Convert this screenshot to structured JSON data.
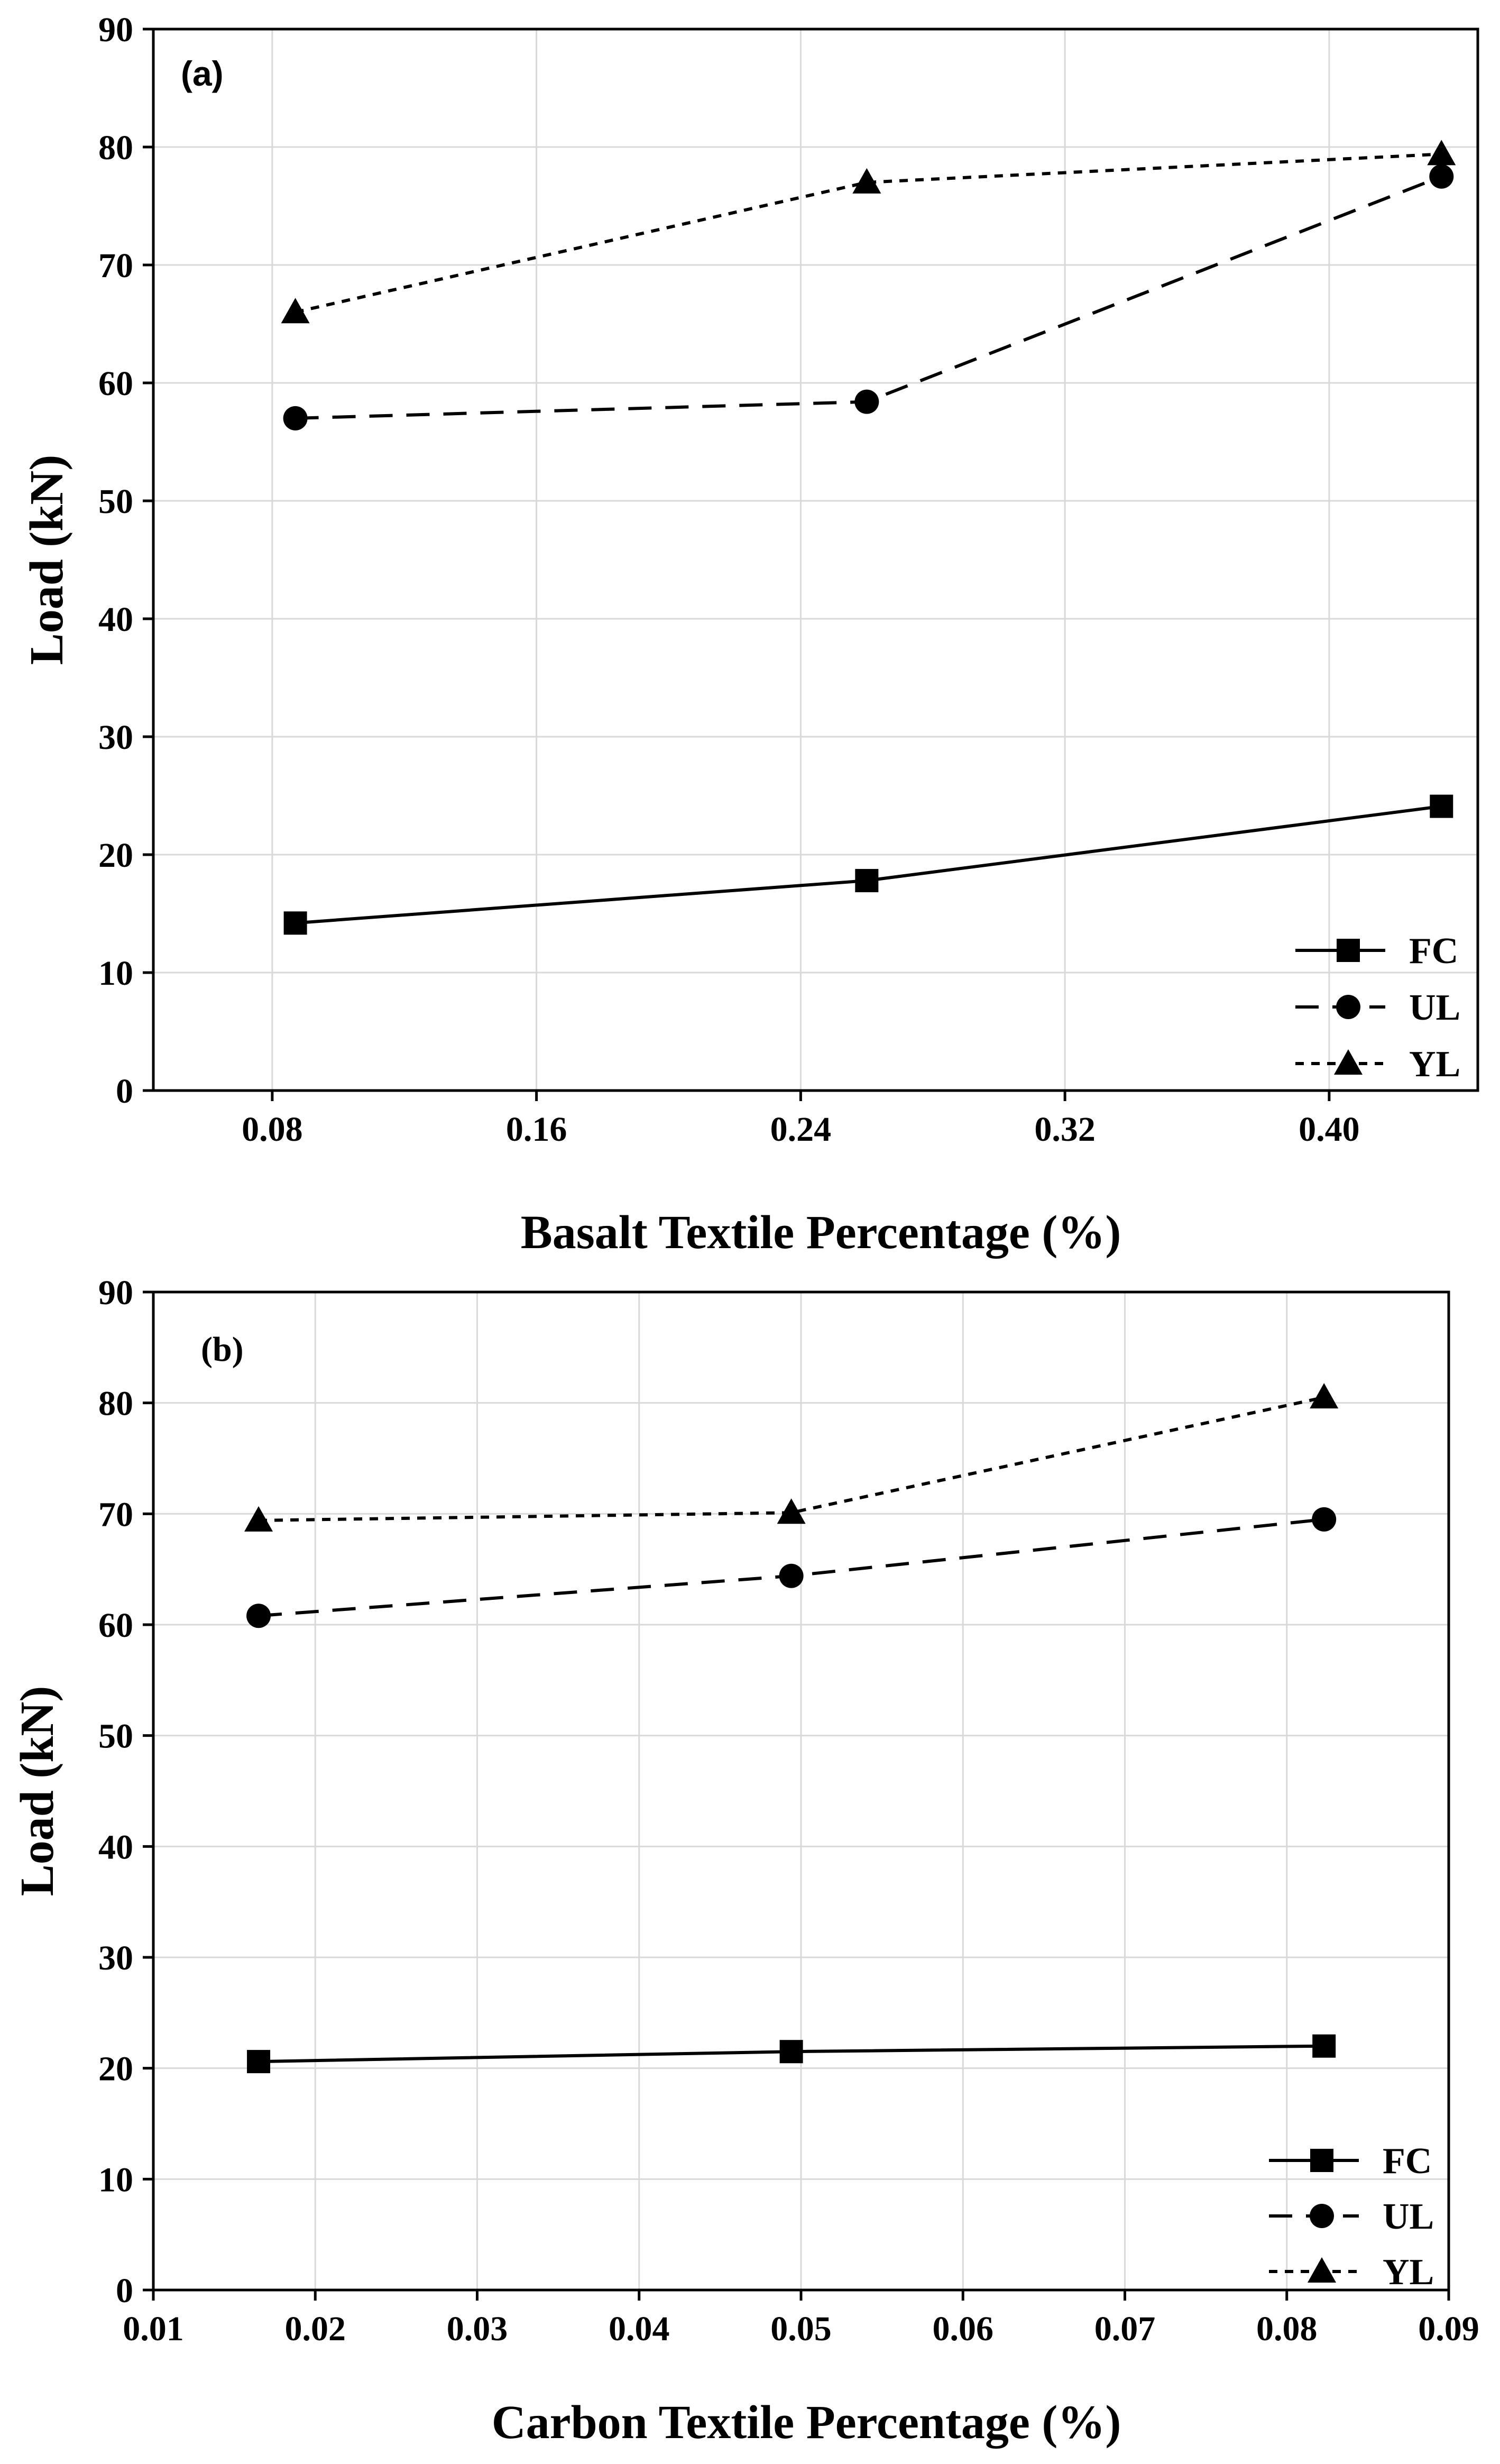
{
  "chart_data": [
    {
      "type": "line",
      "panel_label": "(a)",
      "xlabel": "Basalt Textile Percentage (%)",
      "ylabel": "Load (kN)",
      "xlim": [
        0.044,
        0.445
      ],
      "ylim": [
        0,
        90
      ],
      "x_ticks": [
        0.08,
        0.16,
        0.24,
        0.32,
        0.4
      ],
      "x_tick_labels": [
        "0.08",
        "0.16",
        "0.24",
        "0.32",
        "0.40"
      ],
      "y_ticks": [
        0,
        10,
        20,
        30,
        40,
        50,
        60,
        70,
        80,
        90
      ],
      "y_tick_labels": [
        "0",
        "10",
        "20",
        "30",
        "40",
        "50",
        "60",
        "70",
        "80",
        "90"
      ],
      "grid": true,
      "legend_position": "bottom-right",
      "series": [
        {
          "name": "FC",
          "marker": "square",
          "line": "solid",
          "x": [
            0.087,
            0.26,
            0.434
          ],
          "values": [
            14.2,
            17.8,
            24.1
          ]
        },
        {
          "name": "UL",
          "marker": "circle",
          "line": "dashed",
          "x": [
            0.087,
            0.26,
            0.434
          ],
          "values": [
            57.0,
            58.4,
            77.5
          ]
        },
        {
          "name": "YL",
          "marker": "triangle",
          "line": "dotted",
          "x": [
            0.087,
            0.26,
            0.434
          ],
          "values": [
            66.0,
            77.0,
            79.4
          ]
        }
      ]
    },
    {
      "type": "line",
      "panel_label": "(b)",
      "xlabel": "Carbon Textile Percentage (%)",
      "ylabel": "Load (kN)",
      "xlim": [
        0.01,
        0.09
      ],
      "ylim": [
        0,
        90
      ],
      "x_ticks": [
        0.01,
        0.02,
        0.03,
        0.04,
        0.05,
        0.06,
        0.07,
        0.08,
        0.09
      ],
      "x_tick_labels": [
        "0.01",
        "0.02",
        "0.03",
        "0.04",
        "0.05",
        "0.06",
        "0.07",
        "0.08",
        "0.09"
      ],
      "y_ticks": [
        0,
        10,
        20,
        30,
        40,
        50,
        60,
        70,
        80,
        90
      ],
      "y_tick_labels": [
        "0",
        "10",
        "20",
        "30",
        "40",
        "50",
        "60",
        "70",
        "80",
        "90"
      ],
      "grid": true,
      "legend_position": "bottom-right",
      "series": [
        {
          "name": "FC",
          "marker": "square",
          "line": "solid",
          "x": [
            0.0165,
            0.0494,
            0.0823
          ],
          "values": [
            20.6,
            21.5,
            22.0
          ]
        },
        {
          "name": "UL",
          "marker": "circle",
          "line": "dashed",
          "x": [
            0.0165,
            0.0494,
            0.0823
          ],
          "values": [
            60.8,
            64.4,
            69.5
          ]
        },
        {
          "name": "YL",
          "marker": "triangle",
          "line": "dotted",
          "x": [
            0.0165,
            0.0494,
            0.0823
          ],
          "values": [
            69.4,
            70.1,
            80.5
          ]
        }
      ]
    }
  ]
}
